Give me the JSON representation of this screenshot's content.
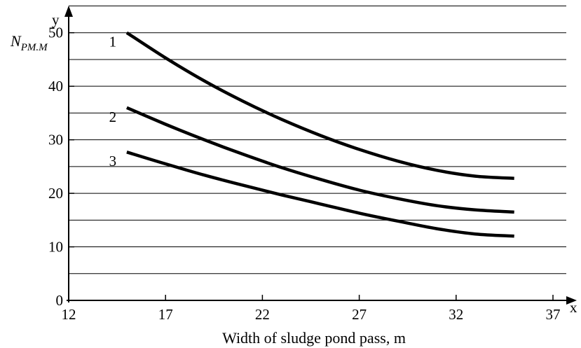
{
  "chart_data": {
    "type": "line",
    "xlabel": "Width of sludge pond pass, m",
    "x_axis_name": "x",
    "y_axis_name": "y",
    "ylabel": {
      "main": "N",
      "sub": "PM.M"
    },
    "xlim": [
      12,
      37
    ],
    "ylim": [
      0,
      55
    ],
    "x_ticks": [
      12,
      17,
      22,
      27,
      32,
      37
    ],
    "y_ticks": [
      0,
      10,
      20,
      30,
      40,
      50
    ],
    "gridlines_y": [
      5,
      10,
      15,
      20,
      25,
      30,
      35,
      40,
      45,
      50,
      55
    ],
    "grid": "horizontal",
    "series": [
      {
        "name": "1",
        "x": [
          15,
          17,
          19,
          21,
          23,
          25,
          27,
          29,
          31,
          33,
          35
        ],
        "y": [
          50,
          45.3,
          41.0,
          37.2,
          33.8,
          30.8,
          28.2,
          26.0,
          24.3,
          23.2,
          22.8
        ]
      },
      {
        "name": "2",
        "x": [
          15,
          17,
          19,
          21,
          23,
          25,
          27,
          29,
          31,
          33,
          35
        ],
        "y": [
          36,
          32.9,
          30.0,
          27.3,
          24.8,
          22.6,
          20.6,
          19.0,
          17.7,
          16.9,
          16.5
        ]
      },
      {
        "name": "3",
        "x": [
          15,
          17,
          19,
          21,
          23,
          25,
          27,
          29,
          31,
          33,
          35
        ],
        "y": [
          27.7,
          25.5,
          23.4,
          21.5,
          19.7,
          18.0,
          16.3,
          14.8,
          13.4,
          12.4,
          12.0
        ]
      }
    ]
  }
}
